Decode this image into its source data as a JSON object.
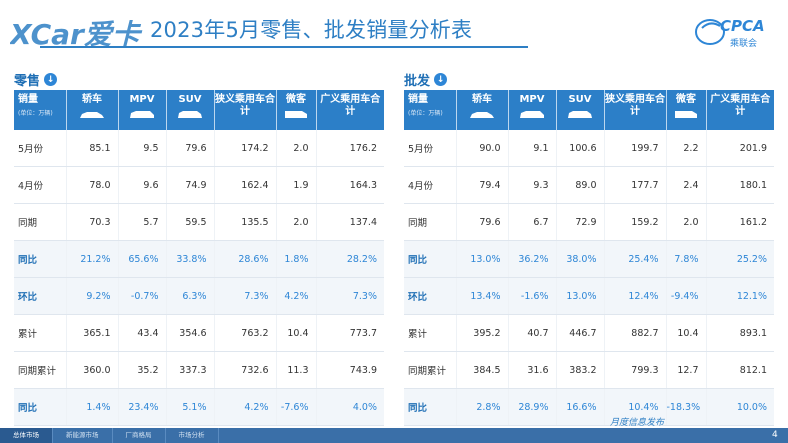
{
  "title": "2023年5月零售、批发销量分析表",
  "logo_left_text": "XCar爱卡",
  "logo_right_text": "CPCA",
  "logo_right_sub": "乘联会",
  "header_first": "销量",
  "header_first_sub": "(单位：万辆)",
  "retail": {
    "section_label": "零售",
    "icon": "down-arrow-circle-icon",
    "columns": [
      "轿车",
      "MPV",
      "SUV",
      "狭义乘用车合计",
      "微客",
      "广义乘用车合计"
    ],
    "rows": [
      {
        "label": "5月份",
        "values": [
          "85.1",
          "9.5",
          "79.6",
          "174.2",
          "2.0",
          "176.2"
        ],
        "pct": false
      },
      {
        "label": "4月份",
        "values": [
          "78.0",
          "9.6",
          "74.9",
          "162.4",
          "1.9",
          "164.3"
        ],
        "pct": false
      },
      {
        "label": "同期",
        "values": [
          "70.3",
          "5.7",
          "59.5",
          "135.5",
          "2.0",
          "137.4"
        ],
        "pct": false
      },
      {
        "label": "同比",
        "values": [
          "21.2%",
          "65.6%",
          "33.8%",
          "28.6%",
          "1.8%",
          "28.2%"
        ],
        "pct": true
      },
      {
        "label": "环比",
        "values": [
          "9.2%",
          "-0.7%",
          "6.3%",
          "7.3%",
          "4.2%",
          "7.3%"
        ],
        "pct": true
      },
      {
        "label": "累计",
        "values": [
          "365.1",
          "43.4",
          "354.6",
          "763.2",
          "10.4",
          "773.7"
        ],
        "pct": false
      },
      {
        "label": "同期累计",
        "values": [
          "360.0",
          "35.2",
          "337.3",
          "732.6",
          "11.3",
          "743.9"
        ],
        "pct": false
      },
      {
        "label": "同比",
        "values": [
          "1.4%",
          "23.4%",
          "5.1%",
          "4.2%",
          "-7.6%",
          "4.0%"
        ],
        "pct": true
      }
    ]
  },
  "wholesale": {
    "section_label": "批发",
    "icon": "down-arrow-circle-icon",
    "columns": [
      "轿车",
      "MPV",
      "SUV",
      "狭义乘用车合计",
      "微客",
      "广义乘用车合计"
    ],
    "rows": [
      {
        "label": "5月份",
        "values": [
          "90.0",
          "9.1",
          "100.6",
          "199.7",
          "2.2",
          "201.9"
        ],
        "pct": false
      },
      {
        "label": "4月份",
        "values": [
          "79.4",
          "9.3",
          "89.0",
          "177.7",
          "2.4",
          "180.1"
        ],
        "pct": false
      },
      {
        "label": "同期",
        "values": [
          "79.6",
          "6.7",
          "72.9",
          "159.2",
          "2.0",
          "161.2"
        ],
        "pct": false
      },
      {
        "label": "同比",
        "values": [
          "13.0%",
          "36.2%",
          "38.0%",
          "25.4%",
          "7.8%",
          "25.2%"
        ],
        "pct": true
      },
      {
        "label": "环比",
        "values": [
          "13.4%",
          "-1.6%",
          "13.0%",
          "12.4%",
          "-9.4%",
          "12.1%"
        ],
        "pct": true
      },
      {
        "label": "累计",
        "values": [
          "395.2",
          "40.7",
          "446.7",
          "882.7",
          "10.4",
          "893.1"
        ],
        "pct": false
      },
      {
        "label": "同期累计",
        "values": [
          "384.5",
          "31.6",
          "383.2",
          "799.3",
          "12.7",
          "812.1"
        ],
        "pct": false
      },
      {
        "label": "同比",
        "values": [
          "2.8%",
          "28.9%",
          "16.6%",
          "10.4%",
          "-18.3%",
          "10.0%"
        ],
        "pct": true
      }
    ]
  },
  "footer": {
    "tabs": [
      "总体市场",
      "新能源市场",
      "厂商格局",
      "市场分析"
    ],
    "signature": "月度信息发布",
    "page_number": "4"
  },
  "colors": {
    "accent": "#2e7fc4",
    "header_bg": "#2c7fc8",
    "pct_text": "#2e86d6",
    "footer_bg": "#3a6fa8"
  }
}
